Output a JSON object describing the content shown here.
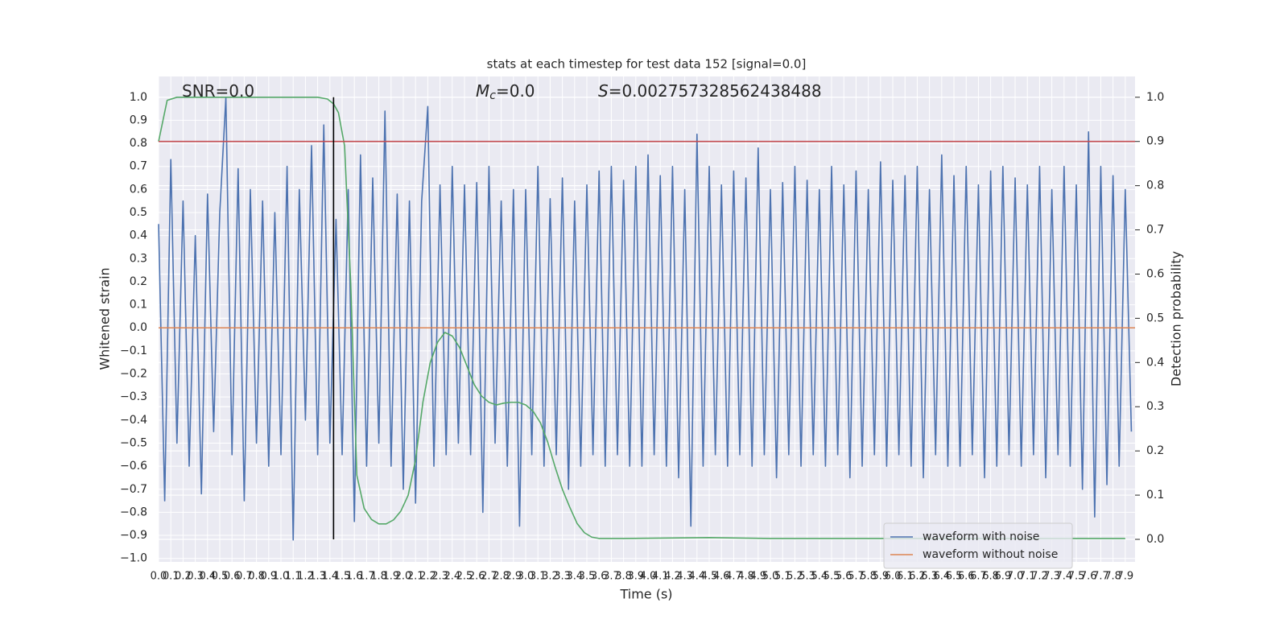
{
  "chart_data": {
    "type": "line",
    "title": "stats at each timestep for test data 152 [signal=0.0]",
    "xlabel": "Time (s)",
    "ylabel": "Whitened strain",
    "y2label": "Detection probability",
    "background": "#eaeaf2",
    "grid": true,
    "legend": "lower right",
    "xlim": [
      0,
      7.98
    ],
    "ylim": [
      -1.015,
      1.09
    ],
    "y2lim": [
      -0.051,
      1.047
    ],
    "xticks": [
      {
        "value": 0,
        "label": "0.0"
      },
      0.1,
      0.2,
      0.3,
      0.4,
      0.5,
      0.6,
      0.7,
      0.8,
      0.9,
      {
        "value": 1,
        "label": "1.0"
      },
      1.1,
      1.2,
      1.3,
      1.4,
      1.5,
      1.6,
      1.7,
      1.8,
      1.9,
      {
        "value": 2,
        "label": "2.0"
      },
      2.1,
      2.2,
      2.3,
      2.4,
      2.5,
      2.6,
      2.7,
      2.8,
      2.9,
      {
        "value": 3,
        "label": "3.0"
      },
      3.1,
      3.2,
      3.3,
      3.4,
      3.5,
      3.6,
      3.7,
      3.8,
      3.9,
      {
        "value": 4,
        "label": "4.0"
      },
      4.1,
      4.2,
      4.3,
      4.4,
      4.5,
      4.6,
      4.7,
      4.8,
      4.9,
      {
        "value": 5,
        "label": "5.0"
      },
      5.1,
      5.2,
      5.3,
      5.4,
      5.5,
      5.6,
      5.7,
      5.8,
      5.9,
      {
        "value": 6,
        "label": "6.0"
      },
      6.1,
      6.2,
      6.3,
      6.4,
      6.5,
      6.6,
      6.7,
      6.8,
      6.9,
      {
        "value": 7,
        "label": "7.0"
      },
      7.1,
      7.2,
      7.3,
      7.4,
      7.5,
      7.6,
      7.7,
      7.8,
      7.9
    ],
    "yticks": [
      {
        "value": -1,
        "label": "−1.0"
      },
      {
        "value": -0.9,
        "label": "−0.9"
      },
      {
        "value": -0.8,
        "label": "−0.8"
      },
      {
        "value": -0.7,
        "label": "−0.7"
      },
      {
        "value": -0.6,
        "label": "−0.6"
      },
      {
        "value": -0.5,
        "label": "−0.5"
      },
      {
        "value": -0.4,
        "label": "−0.4"
      },
      {
        "value": -0.3,
        "label": "−0.3"
      },
      {
        "value": -0.2,
        "label": "−0.2"
      },
      {
        "value": -0.1,
        "label": "−0.1"
      },
      {
        "value": 0,
        "label": "0.0"
      },
      0.1,
      0.2,
      0.3,
      0.4,
      0.5,
      0.6,
      0.7,
      0.8,
      0.9,
      {
        "value": 1,
        "label": "1.0"
      }
    ],
    "y2ticks": [
      {
        "value": 0,
        "label": "0.0"
      },
      0.1,
      0.2,
      0.3,
      0.4,
      0.5,
      0.6,
      0.7,
      0.8,
      0.9,
      {
        "value": 1,
        "label": "1.0"
      }
    ],
    "annotations": [
      {
        "text": "SNR=0.0"
      },
      {
        "symbol": "M",
        "subscript": "c",
        "text": "=0.0"
      },
      {
        "symbol": "S",
        "text": "=0.002757328562438488"
      }
    ],
    "hline": {
      "y": 0.9,
      "axis": "y2",
      "color": "#c44e52"
    },
    "vline": {
      "x": 1.43,
      "ymin": 0,
      "ymax": 1,
      "axis": "y2",
      "color": "#000000"
    },
    "series": [
      {
        "name": "waveform with noise",
        "color": "#4c72b0",
        "axis": "y",
        "x": [
          0,
          0.05,
          0.1,
          0.15,
          0.2,
          0.25,
          0.3,
          0.35,
          0.4,
          0.45,
          0.5,
          0.55,
          0.6,
          0.65,
          0.7,
          0.75,
          0.8,
          0.85,
          0.9,
          0.95,
          1,
          1.05,
          1.1,
          1.15,
          1.2,
          1.25,
          1.3,
          1.35,
          1.4,
          1.45,
          1.5,
          1.55,
          1.6,
          1.65,
          1.7,
          1.75,
          1.8,
          1.85,
          1.9,
          1.95,
          2,
          2.05,
          2.1,
          2.15,
          2.2,
          2.25,
          2.3,
          2.35,
          2.4,
          2.45,
          2.5,
          2.55,
          2.6,
          2.65,
          2.7,
          2.75,
          2.8,
          2.85,
          2.9,
          2.95,
          3,
          3.05,
          3.1,
          3.15,
          3.2,
          3.25,
          3.3,
          3.35,
          3.4,
          3.45,
          3.5,
          3.55,
          3.6,
          3.65,
          3.7,
          3.75,
          3.8,
          3.85,
          3.9,
          3.95,
          4,
          4.05,
          4.1,
          4.15,
          4.2,
          4.25,
          4.3,
          4.35,
          4.4,
          4.45,
          4.5,
          4.55,
          4.6,
          4.65,
          4.7,
          4.75,
          4.8,
          4.85,
          4.9,
          4.95,
          5,
          5.05,
          5.1,
          5.15,
          5.2,
          5.25,
          5.3,
          5.35,
          5.4,
          5.45,
          5.5,
          5.55,
          5.6,
          5.65,
          5.7,
          5.75,
          5.8,
          5.85,
          5.9,
          5.95,
          6,
          6.05,
          6.1,
          6.15,
          6.2,
          6.25,
          6.3,
          6.35,
          6.4,
          6.45,
          6.5,
          6.55,
          6.6,
          6.65,
          6.7,
          6.75,
          6.8,
          6.85,
          6.9,
          6.95,
          7,
          7.05,
          7.1,
          7.15,
          7.2,
          7.25,
          7.3,
          7.35,
          7.4,
          7.45,
          7.5,
          7.55,
          7.6,
          7.65,
          7.7,
          7.75,
          7.8,
          7.85,
          7.9,
          7.95
        ],
        "values": [
          0.45,
          -0.75,
          0.73,
          -0.5,
          0.55,
          -0.6,
          0.4,
          -0.72,
          0.58,
          -0.45,
          0.5,
          1.0,
          -0.55,
          0.69,
          -0.75,
          0.6,
          -0.5,
          0.55,
          -0.6,
          0.5,
          -0.55,
          0.7,
          -0.92,
          0.6,
          -0.4,
          0.79,
          -0.55,
          0.88,
          -0.5,
          0.47,
          -0.55,
          0.6,
          -0.84,
          0.75,
          -0.6,
          0.65,
          -0.5,
          0.94,
          -0.6,
          0.58,
          -0.7,
          0.55,
          -0.76,
          0.55,
          0.96,
          -0.6,
          0.62,
          -0.55,
          0.7,
          -0.5,
          0.62,
          -0.55,
          0.63,
          -0.8,
          0.7,
          -0.5,
          0.55,
          -0.6,
          0.6,
          -0.86,
          0.6,
          -0.55,
          0.7,
          -0.6,
          0.56,
          -0.55,
          0.65,
          -0.7,
          0.55,
          -0.6,
          0.62,
          -0.55,
          0.68,
          -0.6,
          0.7,
          -0.55,
          0.64,
          -0.6,
          0.7,
          -0.6,
          0.75,
          -0.55,
          0.66,
          -0.6,
          0.7,
          -0.65,
          0.6,
          -0.86,
          0.84,
          -0.6,
          0.7,
          -0.55,
          0.62,
          -0.6,
          0.68,
          -0.55,
          0.65,
          -0.6,
          0.78,
          -0.55,
          0.6,
          -0.65,
          0.63,
          -0.55,
          0.7,
          -0.6,
          0.64,
          -0.55,
          0.6,
          -0.6,
          0.7,
          -0.55,
          0.62,
          -0.65,
          0.68,
          -0.6,
          0.6,
          -0.55,
          0.72,
          -0.6,
          0.64,
          -0.55,
          0.66,
          -0.6,
          0.7,
          -0.65,
          0.6,
          -0.55,
          0.75,
          -0.6,
          0.66,
          -0.6,
          0.7,
          -0.55,
          0.62,
          -0.65,
          0.68,
          -0.6,
          0.7,
          -0.55,
          0.65,
          -0.6,
          0.62,
          -0.55,
          0.7,
          -0.65,
          0.6,
          -0.55,
          0.7,
          -0.6,
          0.62,
          -0.7,
          0.85,
          -0.82,
          0.7,
          -0.68,
          0.66,
          -0.6,
          0.6,
          -0.45
        ]
      },
      {
        "name": "waveform without noise",
        "color": "#dd8452",
        "axis": "y",
        "x": [
          0,
          7.98
        ],
        "values": [
          0,
          0
        ]
      },
      {
        "color": "#55a868",
        "axis": "y2",
        "x": [
          0,
          0.07,
          0.15,
          0.5,
          1.0,
          1.3,
          1.38,
          1.43,
          1.47,
          1.52,
          1.57,
          1.62,
          1.68,
          1.74,
          1.8,
          1.86,
          1.92,
          1.98,
          2.04,
          2.1,
          2.16,
          2.22,
          2.28,
          2.34,
          2.4,
          2.46,
          2.52,
          2.58,
          2.64,
          2.7,
          2.76,
          2.82,
          2.88,
          2.94,
          3.0,
          3.06,
          3.12,
          3.18,
          3.24,
          3.3,
          3.36,
          3.42,
          3.48,
          3.54,
          3.6,
          3.8,
          4.5,
          5.0,
          7.9
        ],
        "values": [
          0.9,
          0.993,
          1.0,
          1.0,
          1.0,
          1.0,
          0.996,
          0.985,
          0.965,
          0.89,
          0.58,
          0.145,
          0.07,
          0.045,
          0.035,
          0.035,
          0.044,
          0.064,
          0.1,
          0.18,
          0.31,
          0.4,
          0.446,
          0.468,
          0.46,
          0.434,
          0.392,
          0.35,
          0.324,
          0.31,
          0.304,
          0.308,
          0.31,
          0.31,
          0.304,
          0.29,
          0.264,
          0.22,
          0.164,
          0.113,
          0.073,
          0.036,
          0.015,
          0.005,
          0.002,
          0.002,
          0.004,
          0.002,
          0.002
        ]
      }
    ]
  }
}
